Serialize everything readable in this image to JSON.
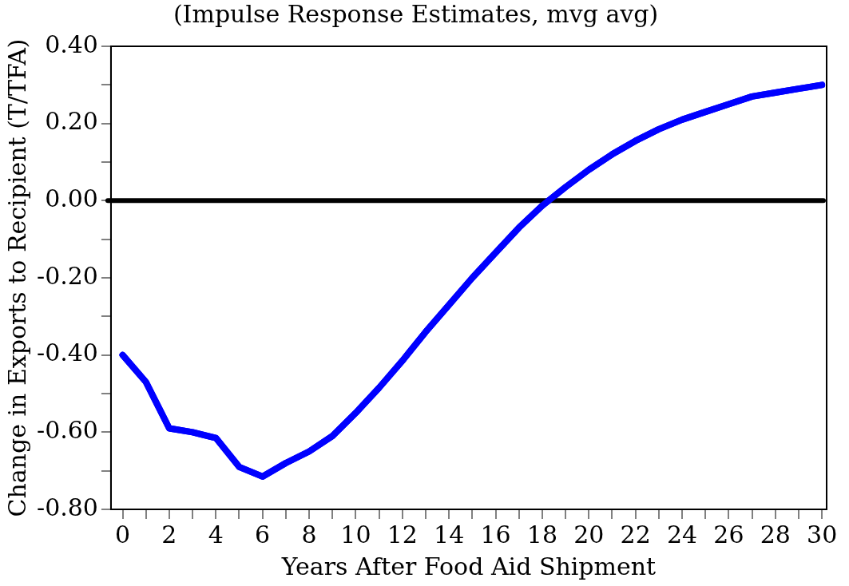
{
  "chart_data": {
    "type": "line",
    "title": "(Impulse Response Estimates, mvg avg)",
    "xlabel": "Years After Food Aid Shipment",
    "ylabel": "Change in Exports to Recipient (T/TFA)",
    "x": [
      0,
      1,
      2,
      3,
      4,
      5,
      6,
      7,
      8,
      9,
      10,
      11,
      12,
      13,
      14,
      15,
      16,
      17,
      18,
      19,
      20,
      21,
      22,
      23,
      24,
      25,
      26,
      27,
      28,
      29,
      30
    ],
    "series": [
      {
        "color": "#0000ff",
        "values": [
          -0.4,
          -0.47,
          -0.59,
          -0.6,
          -0.615,
          -0.69,
          -0.715,
          -0.68,
          -0.65,
          -0.61,
          -0.55,
          -0.485,
          -0.415,
          -0.34,
          -0.27,
          -0.2,
          -0.135,
          -0.07,
          -0.013,
          0.035,
          0.08,
          0.12,
          0.155,
          0.185,
          0.21,
          0.23,
          0.25,
          0.27,
          0.28,
          0.29,
          0.3
        ]
      }
    ],
    "xlim": [
      -0.5,
      30.2
    ],
    "xticks": [
      0,
      {
        "value": 1,
        "label": null
      },
      2,
      {
        "value": 3,
        "label": null
      },
      4,
      {
        "value": 5,
        "label": null
      },
      6,
      {
        "value": 7,
        "label": null
      },
      8,
      {
        "value": 9,
        "label": null
      },
      10,
      {
        "value": 11,
        "label": null
      },
      12,
      {
        "value": 13,
        "label": null
      },
      14,
      {
        "value": 15,
        "label": null
      },
      16,
      {
        "value": 17,
        "label": null
      },
      18,
      {
        "value": 19,
        "label": null
      },
      20,
      {
        "value": 21,
        "label": null
      },
      22,
      {
        "value": 23,
        "label": null
      },
      24,
      {
        "value": 25,
        "label": null
      },
      26,
      {
        "value": 27,
        "label": null
      },
      28,
      {
        "value": 29,
        "label": null
      },
      30
    ],
    "ylim": [
      -0.8,
      0.4
    ],
    "yticks": [
      {
        "value": -0.8,
        "label": "-0.80"
      },
      {
        "value": -0.7,
        "label": null
      },
      {
        "value": -0.6,
        "label": "-0.60"
      },
      {
        "value": -0.5,
        "label": null
      },
      {
        "value": -0.4,
        "label": "-0.40"
      },
      {
        "value": -0.3,
        "label": null
      },
      {
        "value": -0.2,
        "label": "-0.20"
      },
      {
        "value": -0.1,
        "label": null
      },
      {
        "value": 0,
        "label": "0.00"
      },
      {
        "value": 0.1,
        "label": null
      },
      {
        "value": 0.2,
        "label": "0.20"
      },
      {
        "value": 0.3,
        "label": null
      },
      {
        "value": 0.4,
        "label": "0.40"
      }
    ],
    "ref_lines": [
      {
        "axis": "y",
        "value": 0,
        "color": "#000000",
        "line_style": "solid"
      }
    ],
    "grid": false,
    "legend": false,
    "marker": "none",
    "line_style": "solid"
  }
}
